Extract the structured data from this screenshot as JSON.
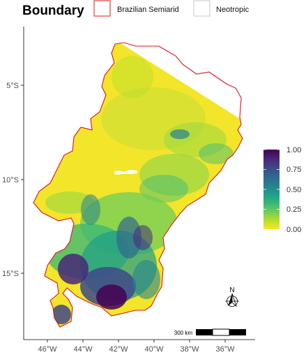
{
  "legend": {
    "title": "Boundary",
    "items": [
      {
        "label": "Brazilian Semiarid",
        "stroke": "#e0141b"
      },
      {
        "label": "Neotropic",
        "stroke": "#c8c8c8"
      }
    ]
  },
  "axes": {
    "x_ticks": [
      "46°W",
      "44°W",
      "42°W",
      "40°W",
      "38°W",
      "36°W"
    ],
    "y_ticks": [
      "5°S",
      "10°S",
      "15°S"
    ]
  },
  "colorbar": {
    "ticks": [
      "1.00",
      "0.75",
      "0.50",
      "0.25",
      "0.00"
    ],
    "range": [
      0,
      1
    ],
    "palette": [
      "#fde725",
      "#b5de2b",
      "#6ece58",
      "#35b779",
      "#1f9e89",
      "#26828e",
      "#31688e",
      "#3e4989",
      "#482878",
      "#440154"
    ]
  },
  "scalebar": {
    "label": "300 km"
  },
  "north_arrow": {
    "label": "N"
  },
  "colors": {
    "boundary": "#e0141b",
    "axis": "#000000",
    "tick_text": "#4d4d4d"
  }
}
